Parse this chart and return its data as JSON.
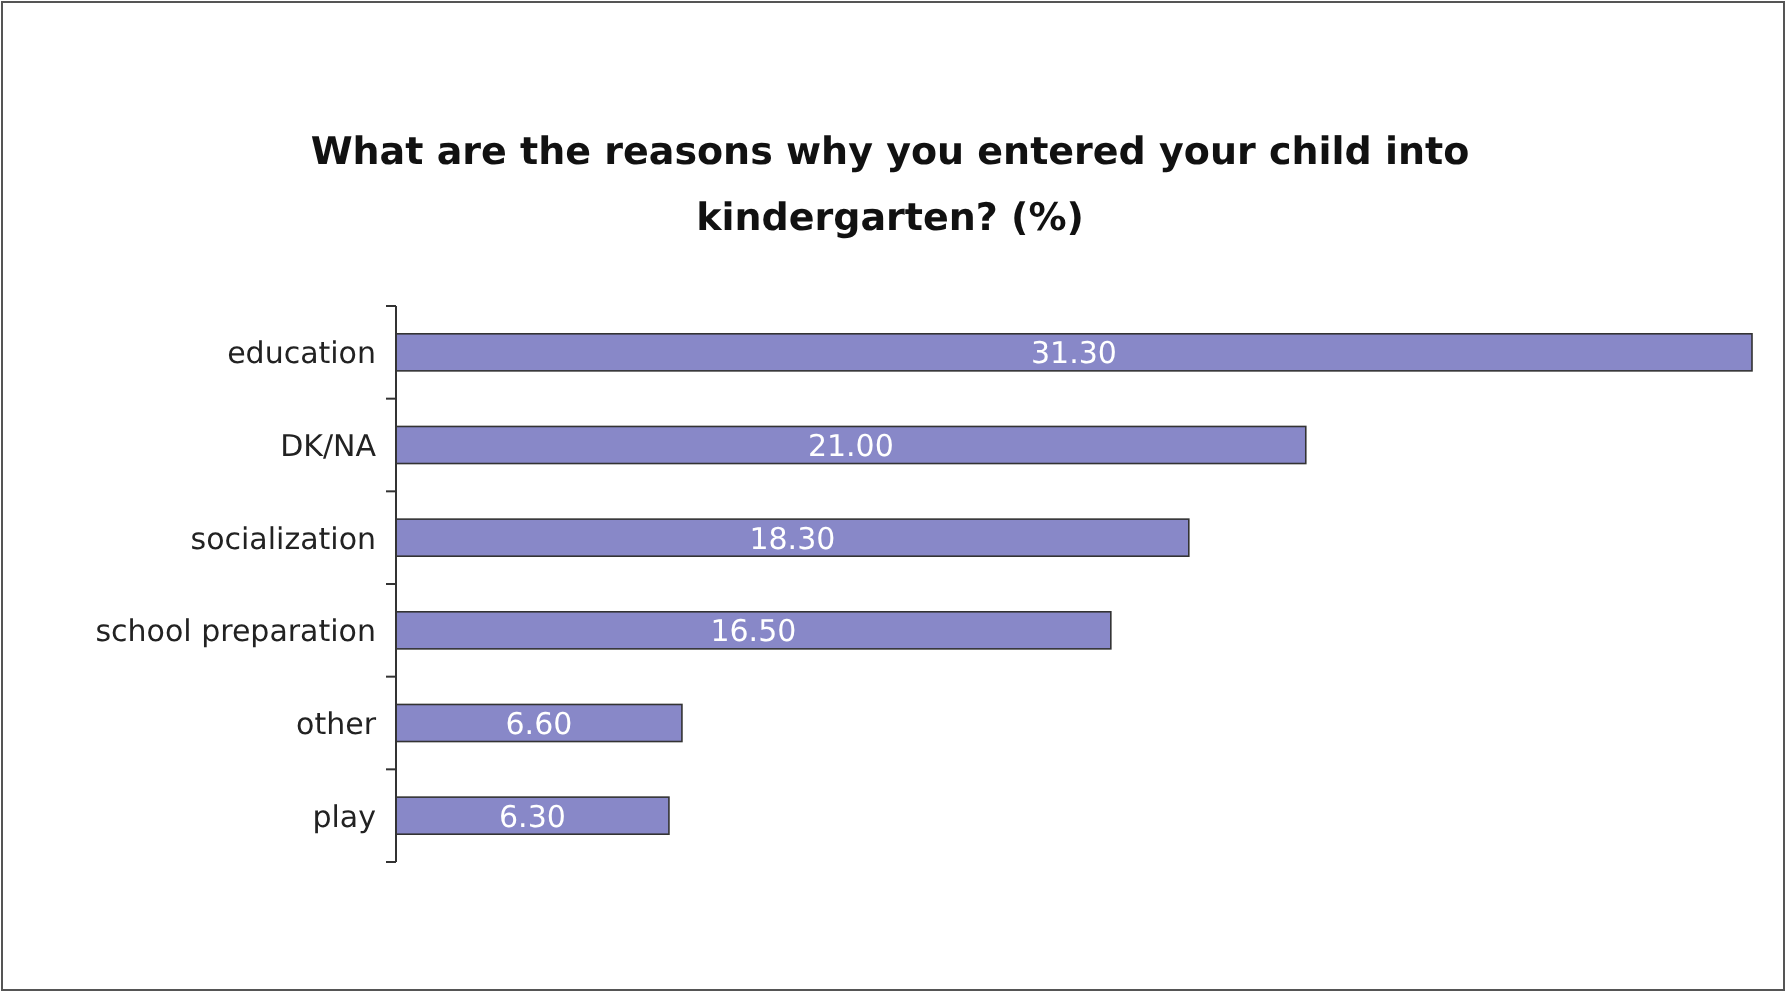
{
  "chart_data": {
    "type": "bar",
    "orientation": "horizontal",
    "title": "What are the reasons why you entered your child into kindergarten? (%)",
    "categories": [
      "education",
      "DK/NA",
      "socialization",
      "school preparation",
      "other",
      "play"
    ],
    "values": [
      31.3,
      21.0,
      18.3,
      16.5,
      6.6,
      6.3
    ],
    "value_labels": [
      "31.30",
      "21.00",
      "18.30",
      "16.50",
      "6.60",
      "6.30"
    ],
    "color": "#8888c8"
  }
}
